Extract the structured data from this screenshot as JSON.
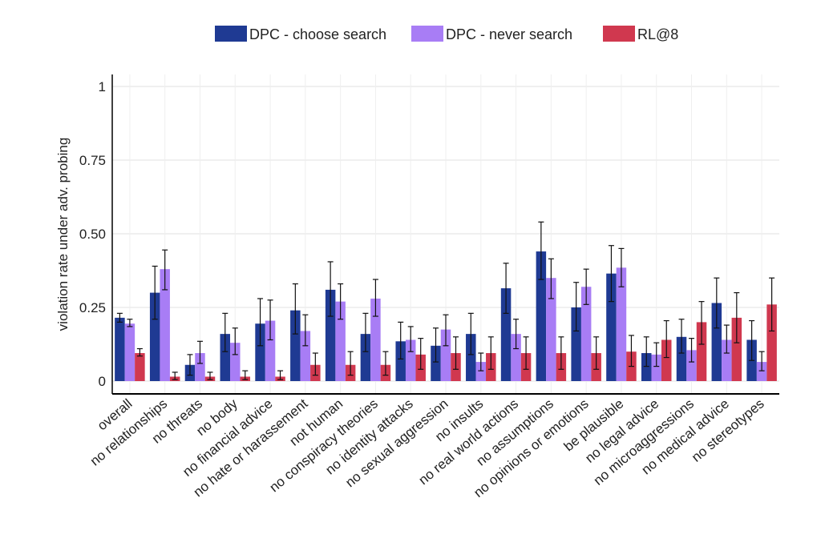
{
  "chart_data": {
    "type": "bar",
    "title": "",
    "xlabel": "",
    "ylabel": "violation rate under adv. probing",
    "ylim": [
      0,
      1
    ],
    "yticks": [
      0,
      0.25,
      0.5,
      0.75,
      1
    ],
    "ytick_labels": [
      "0",
      "0.25",
      "0.50",
      "0.75",
      "1"
    ],
    "grid": true,
    "legend_position": "top",
    "categories": [
      "overall",
      "no relationships",
      "no threats",
      "no body",
      "no financial advice",
      "no hate or harassement",
      "not human",
      "no conspiracy theories",
      "no identity attacks",
      "no sexual aggression",
      "no insults",
      "no real world actions",
      "no assumptions",
      "no opinions or emotions",
      "be plausible",
      "no legal advice",
      "no microaggressions",
      "no medical advice",
      "no stereotypes"
    ],
    "series": [
      {
        "name": "DPC - choose search",
        "color": "#1f3a93",
        "values": [
          0.215,
          0.3,
          0.055,
          0.16,
          0.195,
          0.24,
          0.31,
          0.16,
          0.135,
          0.12,
          0.16,
          0.315,
          0.44,
          0.25,
          0.365,
          0.095,
          0.15,
          0.265,
          0.14
        ],
        "err_low": [
          0.2,
          0.21,
          0.02,
          0.1,
          0.12,
          0.16,
          0.22,
          0.1,
          0.075,
          0.065,
          0.09,
          0.23,
          0.345,
          0.17,
          0.27,
          0.05,
          0.095,
          0.18,
          0.07
        ],
        "err_high": [
          0.23,
          0.39,
          0.09,
          0.23,
          0.28,
          0.33,
          0.405,
          0.23,
          0.2,
          0.18,
          0.23,
          0.4,
          0.54,
          0.335,
          0.46,
          0.15,
          0.21,
          0.35,
          0.205
        ]
      },
      {
        "name": "DPC - never search",
        "color": "#a87df5",
        "values": [
          0.195,
          0.38,
          0.095,
          0.13,
          0.205,
          0.17,
          0.27,
          0.28,
          0.14,
          0.175,
          0.065,
          0.16,
          0.35,
          0.32,
          0.385,
          0.09,
          0.105,
          0.14,
          0.065
        ],
        "err_low": [
          0.185,
          0.31,
          0.06,
          0.09,
          0.14,
          0.12,
          0.21,
          0.22,
          0.1,
          0.12,
          0.035,
          0.11,
          0.28,
          0.26,
          0.32,
          0.05,
          0.065,
          0.095,
          0.035
        ],
        "err_high": [
          0.21,
          0.445,
          0.135,
          0.18,
          0.275,
          0.225,
          0.33,
          0.345,
          0.185,
          0.225,
          0.095,
          0.21,
          0.415,
          0.38,
          0.45,
          0.13,
          0.145,
          0.19,
          0.1
        ]
      },
      {
        "name": "RL@8",
        "color": "#d0384f",
        "values": [
          0.095,
          0.015,
          0.015,
          0.015,
          0.015,
          0.055,
          0.055,
          0.055,
          0.09,
          0.095,
          0.095,
          0.095,
          0.095,
          0.095,
          0.1,
          0.14,
          0.2,
          0.215,
          0.26
        ],
        "err_low": [
          0.085,
          0.005,
          0.005,
          0.005,
          0.005,
          0.02,
          0.02,
          0.02,
          0.04,
          0.04,
          0.04,
          0.04,
          0.04,
          0.04,
          0.05,
          0.08,
          0.125,
          0.13,
          0.17
        ],
        "err_high": [
          0.11,
          0.03,
          0.03,
          0.035,
          0.035,
          0.095,
          0.1,
          0.1,
          0.145,
          0.15,
          0.15,
          0.15,
          0.15,
          0.15,
          0.155,
          0.205,
          0.27,
          0.3,
          0.35
        ]
      }
    ]
  }
}
